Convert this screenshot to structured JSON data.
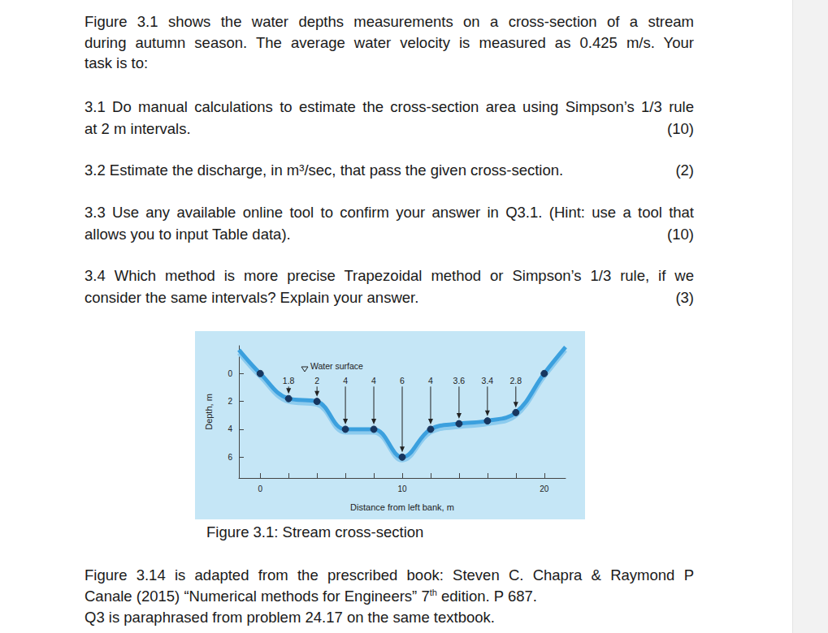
{
  "document": {
    "intro": [
      "Figure 3.1 shows the water depths measurements on a cross-section of a stream",
      "during autumn season. The average water velocity is measured as 0.425 m/s. Your",
      "task is to:"
    ],
    "questions": [
      {
        "lines": [
          "3.1 Do manual calculations to estimate the cross-section area using Simpson’s 1/3 rule",
          "at 2 m intervals."
        ],
        "marks": "(10)"
      },
      {
        "lines": [
          "3.2 Estimate the discharge, in m³/sec, that pass the given cross-section."
        ],
        "marks": "(2)"
      },
      {
        "lines": [
          "3.3 Use any available online tool to confirm your answer in Q3.1. (Hint: use a tool that",
          "allows you to input Table data)."
        ],
        "marks": "(10)"
      },
      {
        "lines": [
          "3.4 Which method is more precise Trapezoidal method or Simpson’s 1/3 rule, if we",
          "consider the same intervals? Explain your answer."
        ],
        "marks": "(3)"
      }
    ],
    "caption": "Figure 3.1: Stream cross-section",
    "footer": [
      [
        "Figure 3.14 is adapted from the prescribed book: Steven C. Chapra & Raymond P"
      ],
      [
        "Canale (2015) “Numerical methods for Engineers” 7",
        {
          "sup": "th"
        },
        " edition. P 687."
      ],
      [
        "Q3 is paraphrased from problem 24.17 on the same textbook."
      ]
    ]
  },
  "chart_data": {
    "type": "line",
    "x": [
      -1.5,
      0,
      2,
      4,
      6,
      8,
      10,
      12,
      14,
      16,
      18,
      20,
      21.5
    ],
    "values": [
      -1.7,
      0,
      1.8,
      2,
      4,
      4,
      6,
      4,
      3.6,
      3.4,
      2.8,
      0,
      -1.9
    ],
    "color": "#3ba0de",
    "marker": "circle",
    "soundings": {
      "x": [
        2,
        4,
        6,
        8,
        10,
        12,
        14,
        16,
        18
      ],
      "depths": [
        1.8,
        2,
        4,
        4,
        6,
        4,
        3.6,
        3.4,
        2.8
      ]
    },
    "annotations": [
      {
        "text": "Water surface"
      }
    ],
    "xlabel": "Distance from left bank, m",
    "ylabel": "Depth, m",
    "xlim": [
      -1.5,
      21.5
    ],
    "ylim": [
      -2,
      7.5
    ],
    "xticks": [
      0,
      10,
      20
    ],
    "yticks": [
      0,
      2,
      4,
      6
    ],
    "grid": false
  }
}
